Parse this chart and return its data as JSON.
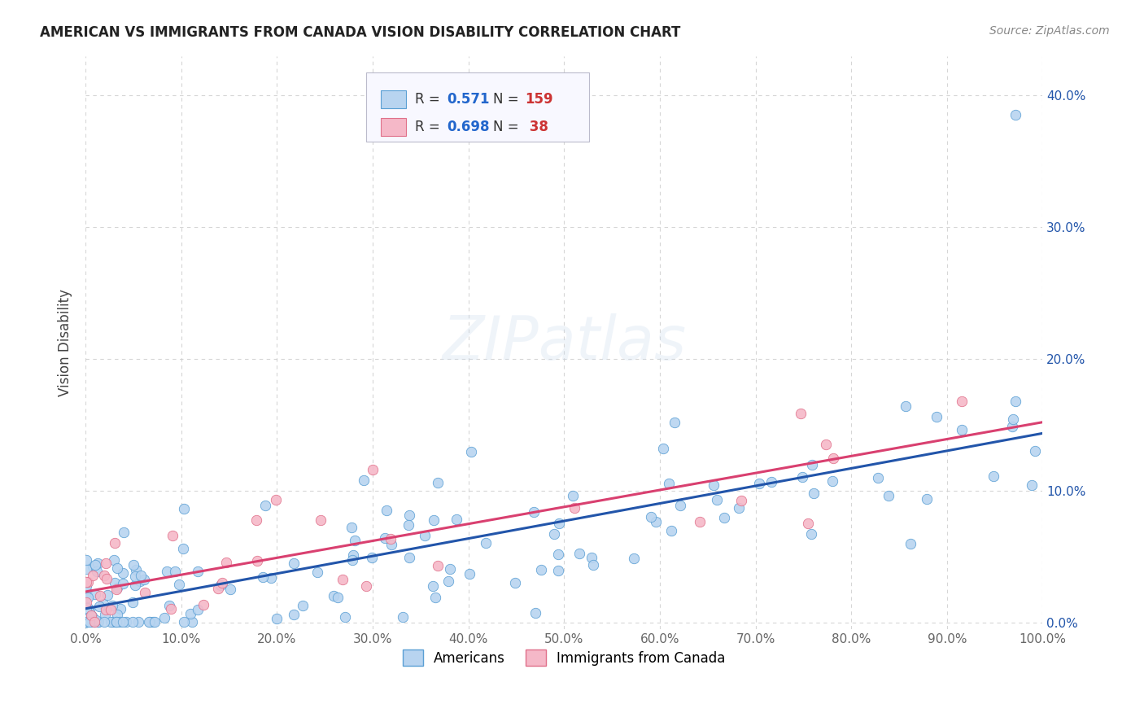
{
  "title": "AMERICAN VS IMMIGRANTS FROM CANADA VISION DISABILITY CORRELATION CHART",
  "source": "Source: ZipAtlas.com",
  "ylabel": "Vision Disability",
  "watermark": "ZIPatlas",
  "americans": {
    "R": 0.571,
    "N": 159,
    "scatter_color": "#b8d4f0",
    "edge_color": "#5a9fd4",
    "line_color": "#2255aa"
  },
  "immigrants": {
    "R": 0.698,
    "N": 38,
    "scatter_color": "#f5b8c8",
    "edge_color": "#e0708a",
    "line_color": "#d94070"
  },
  "xlim": [
    0.0,
    1.0
  ],
  "ylim": [
    -0.005,
    0.43
  ],
  "xticks": [
    0.0,
    0.1,
    0.2,
    0.3,
    0.4,
    0.5,
    0.6,
    0.7,
    0.8,
    0.9,
    1.0
  ],
  "yticks": [
    0.0,
    0.1,
    0.2,
    0.3,
    0.4
  ],
  "background_color": "#ffffff",
  "grid_color": "#cccccc",
  "legend_R_color": "#2266cc",
  "legend_N_color": "#cc3333",
  "legend_label_color": "#333333"
}
